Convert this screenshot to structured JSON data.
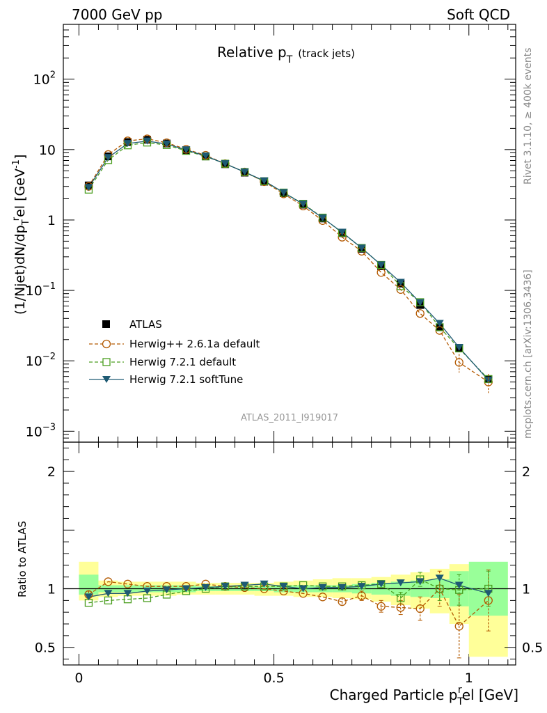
{
  "header": {
    "energy": "7000 GeV pp",
    "process": "Soft QCD"
  },
  "side": {
    "rivet": "Rivet 3.1.10, ≥ 400k events",
    "mcplots": "mcplots.cern.ch [arXiv:1306.3436]"
  },
  "chart_data": {
    "type": "line",
    "title": "Relative p_T (track jets)",
    "title_main": "Relative p",
    "title_sub": "T",
    "title_note": "(track jets)",
    "analysis_id": "ATLAS_2011_I919017",
    "xlabel": "Charged Particle p_T^rel [GeV]",
    "xlabel_main": "Charged Particle p",
    "xlabel_sub": "T",
    "xlabel_sup": "r",
    "xlabel_tail": "el [GeV]",
    "ylabel": "(1/Njet)dN/dp_T^rel [GeV^-1]",
    "ylabel_a": "(1/Njet)dN/dp",
    "ylabel_sub": "T",
    "ylabel_sup": "r",
    "ylabel_b": "el [GeV",
    "ylabel_sup2": "-1",
    "ylabel_c": "]",
    "ratio_ylabel": "Ratio to ATLAS",
    "xlim": [
      -0.04,
      1.12
    ],
    "ylim": [
      0.0007,
      600
    ],
    "ratio_ylim": [
      0.35,
      2.25
    ],
    "x_ticks": [
      {
        "value": 0,
        "label": "0"
      },
      {
        "value": 0.5,
        "label": "0.5"
      },
      {
        "value": 1,
        "label": "1"
      }
    ],
    "y_ticks": [
      {
        "exp": -3,
        "base": "10",
        "sup": "−3"
      },
      {
        "exp": -2,
        "base": "10",
        "sup": "−2"
      },
      {
        "exp": -1,
        "base": "10",
        "sup": "−1"
      },
      {
        "exp": 0,
        "base": "1",
        "sup": ""
      },
      {
        "exp": 1,
        "base": "10",
        "sup": ""
      },
      {
        "exp": 2,
        "base": "10",
        "sup": "2"
      }
    ],
    "ratio_ticks": [
      {
        "value": 0.5,
        "label": "0.5"
      },
      {
        "value": 1,
        "label": "1"
      },
      {
        "value": 2,
        "label": "2"
      }
    ],
    "x": [
      0.025,
      0.075,
      0.125,
      0.175,
      0.225,
      0.275,
      0.325,
      0.375,
      0.425,
      0.475,
      0.525,
      0.575,
      0.625,
      0.675,
      0.725,
      0.775,
      0.825,
      0.875,
      0.925,
      0.975,
      1.05
    ],
    "series": [
      {
        "name": "ATLAS",
        "marker": "square-filled",
        "color": "#000000",
        "values": [
          3.1,
          8.0,
          12.8,
          13.8,
          12.2,
          9.8,
          8.0,
          6.2,
          4.7,
          3.5,
          2.4,
          1.65,
          1.05,
          0.65,
          0.39,
          0.22,
          0.125,
          0.062,
          0.03,
          0.015,
          0.0055
        ]
      },
      {
        "name": "Herwig++ 2.6.1a default",
        "marker": "circle-open",
        "color": "#b35900",
        "dashed": true,
        "values": [
          3.0,
          8.5,
          13.3,
          14.2,
          12.5,
          10.1,
          8.3,
          6.3,
          4.8,
          3.5,
          2.35,
          1.58,
          0.98,
          0.57,
          0.36,
          0.18,
          0.103,
          0.047,
          0.027,
          0.0095,
          0.005
        ],
        "ratio": [
          0.95,
          1.06,
          1.04,
          1.02,
          1.02,
          1.02,
          1.04,
          1.02,
          1.01,
          1.0,
          0.98,
          0.96,
          0.93,
          0.89,
          0.94,
          0.85,
          0.84,
          0.83,
          1.0,
          0.68,
          0.9
        ]
      },
      {
        "name": "Herwig 7.2.1 default",
        "marker": "square-open",
        "color": "#4a9e1f",
        "dashed": true,
        "values": [
          2.7,
          7.1,
          11.5,
          12.6,
          11.6,
          9.6,
          8.0,
          6.3,
          4.8,
          3.55,
          2.45,
          1.7,
          1.08,
          0.66,
          0.4,
          0.23,
          0.115,
          0.068,
          0.03,
          0.015,
          0.0055
        ],
        "ratio": [
          0.88,
          0.9,
          0.91,
          0.92,
          0.95,
          0.98,
          1.0,
          1.02,
          1.02,
          1.02,
          1.02,
          1.03,
          1.02,
          1.02,
          1.03,
          1.04,
          0.92,
          1.08,
          1.0,
          0.99,
          1.0
        ]
      },
      {
        "name": "Herwig 7.2.1 softTune",
        "marker": "triangle-down-filled",
        "color": "#1e5a73",
        "dashed": false,
        "values": [
          2.9,
          7.7,
          12.2,
          13.2,
          12.0,
          9.9,
          8.1,
          6.3,
          4.8,
          3.6,
          2.45,
          1.68,
          1.07,
          0.67,
          0.4,
          0.23,
          0.13,
          0.067,
          0.034,
          0.0155,
          0.0053
        ],
        "ratio": [
          0.93,
          0.96,
          0.96,
          0.98,
          0.99,
          1.0,
          1.01,
          1.02,
          1.03,
          1.04,
          1.02,
          1.0,
          1.01,
          1.01,
          1.02,
          1.04,
          1.05,
          1.06,
          1.09,
          1.03,
          0.96
        ]
      }
    ],
    "bands": {
      "edges": [
        0.0,
        0.05,
        0.1,
        0.15,
        0.2,
        0.25,
        0.3,
        0.35,
        0.4,
        0.45,
        0.5,
        0.55,
        0.6,
        0.65,
        0.7,
        0.75,
        0.8,
        0.85,
        0.9,
        0.95,
        1.0,
        1.1
      ],
      "stat_lo": [
        0.95,
        0.97,
        0.97,
        0.97,
        0.97,
        0.97,
        0.98,
        0.98,
        0.98,
        0.98,
        0.97,
        0.97,
        0.97,
        0.97,
        0.96,
        0.95,
        0.94,
        0.93,
        0.92,
        0.85,
        0.77
      ],
      "stat_hi": [
        1.12,
        1.03,
        1.03,
        1.03,
        1.03,
        1.03,
        1.02,
        1.02,
        1.02,
        1.02,
        1.03,
        1.03,
        1.03,
        1.03,
        1.04,
        1.05,
        1.06,
        1.07,
        1.08,
        1.15,
        1.23
      ],
      "sys_lo": [
        0.9,
        0.93,
        0.94,
        0.94,
        0.94,
        0.95,
        0.95,
        0.95,
        0.95,
        0.94,
        0.94,
        0.93,
        0.93,
        0.92,
        0.91,
        0.89,
        0.86,
        0.83,
        0.79,
        0.7,
        0.42
      ],
      "sys_hi": [
        1.23,
        1.07,
        1.06,
        1.06,
        1.06,
        1.06,
        1.05,
        1.05,
        1.05,
        1.05,
        1.06,
        1.07,
        1.08,
        1.09,
        1.09,
        1.1,
        1.12,
        1.14,
        1.17,
        1.21,
        1.21
      ],
      "stat_color": "#99ff99",
      "sys_color": "#ffff99"
    },
    "ratio_errors": {
      "herwig_pp": [
        0.03,
        0.02,
        0.02,
        0.02,
        0.02,
        0.02,
        0.02,
        0.02,
        0.02,
        0.02,
        0.02,
        0.02,
        0.02,
        0.03,
        0.04,
        0.05,
        0.06,
        0.1,
        0.15,
        0.27,
        0.26
      ],
      "herwig7_default": [
        0.02,
        0.02,
        0.02,
        0.02,
        0.02,
        0.02,
        0.02,
        0.02,
        0.02,
        0.02,
        0.02,
        0.02,
        0.02,
        0.02,
        0.03,
        0.03,
        0.05,
        0.06,
        0.1,
        0.13,
        0.15
      ]
    }
  }
}
